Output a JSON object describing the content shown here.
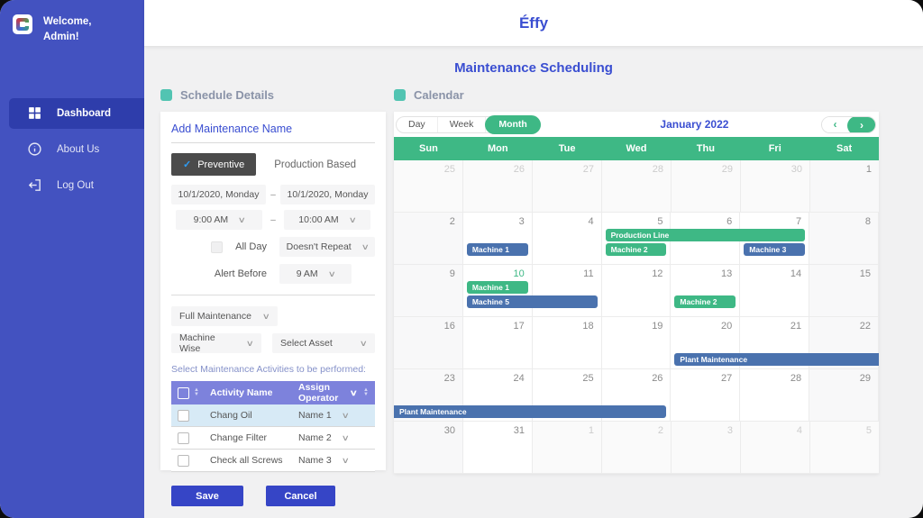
{
  "window": {
    "app_title": "Éffy",
    "page_title": "Maintenance Scheduling"
  },
  "sidebar": {
    "welcome": "Welcome,\nAdmin!",
    "items": [
      {
        "label": "Dashboard",
        "icon": "dashboard-icon",
        "active": true
      },
      {
        "label": "About Us",
        "icon": "info-icon",
        "active": false
      },
      {
        "label": "Log Out",
        "icon": "logout-icon",
        "active": false
      }
    ]
  },
  "schedule_details": {
    "section_title": "Schedule Details",
    "name_placeholder": "Add Maintenance Name",
    "type_selected": "Preventive",
    "type_other": "Production Based",
    "start_date": "10/1/2020, Monday",
    "end_date": "10/1/2020, Monday",
    "date_separator": "–",
    "start_time": "9:00 AM",
    "end_time": "10:00 AM",
    "all_day_label": "All Day",
    "repeat_value": "Doesn't Repeat",
    "alert_label": "Alert Before",
    "alert_value": "9 AM",
    "maintenance_type": "Full Maintenance",
    "scope_value": "Machine Wise",
    "asset_value": "Select Asset",
    "activities_label": "Select Maintenance Activities to be performed:",
    "table": {
      "col_activity": "Activity Name",
      "col_operator": "Assign Operator",
      "rows": [
        {
          "activity": "Chang Oil",
          "operator": "Name 1",
          "highlighted": true
        },
        {
          "activity": "Change Filter",
          "operator": "Name 2",
          "highlighted": false
        },
        {
          "activity": "Check all Screws",
          "operator": "Name 3",
          "highlighted": false
        }
      ]
    },
    "save_label": "Save",
    "cancel_label": "Cancel"
  },
  "calendar": {
    "section_title": "Calendar",
    "view_tabs": [
      "Day",
      "Week",
      "Month"
    ],
    "selected_view": "Month",
    "month_label": "January 2022",
    "day_headers": [
      "Sun",
      "Mon",
      "Tue",
      "Wed",
      "Thu",
      "Fri",
      "Sat"
    ],
    "weeks": [
      [
        {
          "d": 25,
          "out": true
        },
        {
          "d": 26,
          "out": true
        },
        {
          "d": 27,
          "out": true
        },
        {
          "d": 28,
          "out": true
        },
        {
          "d": 29,
          "out": true
        },
        {
          "d": 30,
          "out": true
        },
        {
          "d": 1
        }
      ],
      [
        {
          "d": 2
        },
        {
          "d": 3
        },
        {
          "d": 4
        },
        {
          "d": 5
        },
        {
          "d": 6
        },
        {
          "d": 7
        },
        {
          "d": 8
        }
      ],
      [
        {
          "d": 9
        },
        {
          "d": 10,
          "today": true
        },
        {
          "d": 11
        },
        {
          "d": 12
        },
        {
          "d": 13
        },
        {
          "d": 14
        },
        {
          "d": 15
        }
      ],
      [
        {
          "d": 16
        },
        {
          "d": 17
        },
        {
          "d": 18
        },
        {
          "d": 19
        },
        {
          "d": 20
        },
        {
          "d": 21
        },
        {
          "d": 22
        }
      ],
      [
        {
          "d": 23
        },
        {
          "d": 24
        },
        {
          "d": 25
        },
        {
          "d": 26
        },
        {
          "d": 27
        },
        {
          "d": 28
        },
        {
          "d": 29
        }
      ],
      [
        {
          "d": 30
        },
        {
          "d": 31
        },
        {
          "d": 1,
          "out": true
        },
        {
          "d": 2,
          "out": true
        },
        {
          "d": 3,
          "out": true
        },
        {
          "d": 4,
          "out": true
        },
        {
          "d": 5,
          "out": true
        }
      ]
    ],
    "events": [
      {
        "label": "Production Line",
        "color": "green",
        "week": 1,
        "col": 3,
        "span": 3,
        "slot": 0
      },
      {
        "label": "Machine 1",
        "color": "blue",
        "week": 1,
        "col": 1,
        "span": 1,
        "slot": 1
      },
      {
        "label": "Machine 2",
        "color": "green",
        "week": 1,
        "col": 3,
        "span": 1,
        "slot": 1
      },
      {
        "label": "Machine 3",
        "color": "blue",
        "week": 1,
        "col": 5,
        "span": 1,
        "slot": 1
      },
      {
        "label": "Machine 1",
        "color": "green",
        "week": 2,
        "col": 1,
        "span": 1,
        "slot": 0
      },
      {
        "label": "Machine 5",
        "color": "blue",
        "week": 2,
        "col": 1,
        "span": 2,
        "slot": 1
      },
      {
        "label": "Machine 2",
        "color": "green",
        "week": 2,
        "col": 4,
        "span": 1,
        "slot": 1
      },
      {
        "label": "Plant Maintenance",
        "color": "blue",
        "week": 3,
        "col": 4,
        "span": 3,
        "slot": 2,
        "continues": "right"
      },
      {
        "label": "Plant Maintenance",
        "color": "blue",
        "week": 4,
        "col": 0,
        "span": 4,
        "slot": 2,
        "continues": "left"
      }
    ]
  },
  "colors": {
    "sidebar": "#4352c0",
    "sidebar_active": "#2e3dab",
    "accent_blue": "#3a4ed1",
    "green": "#3eb885",
    "event_blue": "#4a72ae",
    "teal_square": "#52c4b2",
    "table_header": "#7d82dc",
    "button_blue": "#3645c6"
  }
}
